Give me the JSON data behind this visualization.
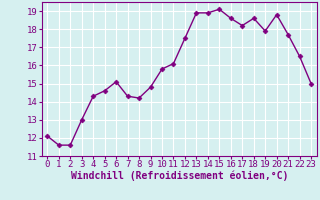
{
  "x": [
    0,
    1,
    2,
    3,
    4,
    5,
    6,
    7,
    8,
    9,
    10,
    11,
    12,
    13,
    14,
    15,
    16,
    17,
    18,
    19,
    20,
    21,
    22,
    23
  ],
  "y": [
    12.1,
    11.6,
    11.6,
    13.0,
    14.3,
    14.6,
    15.1,
    14.3,
    14.2,
    14.8,
    15.8,
    16.1,
    17.5,
    18.9,
    18.9,
    19.1,
    18.6,
    18.2,
    18.6,
    17.9,
    18.8,
    17.7,
    16.5,
    15.0
  ],
  "line_color": "#800080",
  "marker": "D",
  "markersize": 2.5,
  "linewidth": 1.0,
  "bg_color": "#d6f0f0",
  "grid_color": "#ffffff",
  "xlabel": "Windchill (Refroidissement éolien,°C)",
  "xlabel_color": "#800080",
  "xlabel_fontsize": 7,
  "tick_color": "#800080",
  "tick_fontsize": 6.5,
  "xlim": [
    -0.5,
    23.5
  ],
  "ylim": [
    11.0,
    19.5
  ],
  "yticks": [
    11,
    12,
    13,
    14,
    15,
    16,
    17,
    18,
    19
  ],
  "xticks": [
    0,
    1,
    2,
    3,
    4,
    5,
    6,
    7,
    8,
    9,
    10,
    11,
    12,
    13,
    14,
    15,
    16,
    17,
    18,
    19,
    20,
    21,
    22,
    23
  ],
  "spine_color": "#800080"
}
